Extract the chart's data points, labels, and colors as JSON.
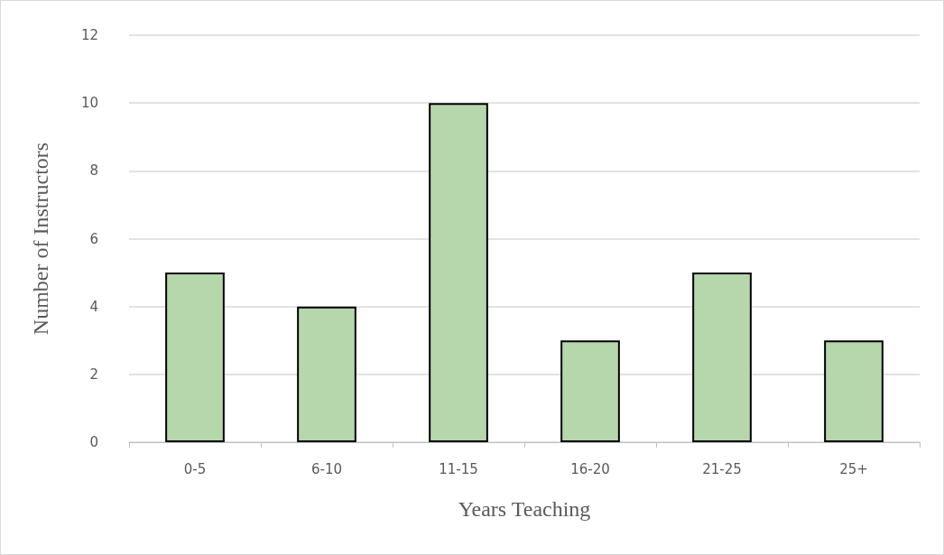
{
  "chart_data": {
    "type": "bar",
    "xlabel": "Years Teaching",
    "ylabel": "Number of Instructors",
    "categories": [
      "0-5",
      "6-10",
      "11-15",
      "16-20",
      "21-25",
      "25+"
    ],
    "values": [
      5,
      4,
      10,
      3,
      5,
      3
    ],
    "color": "#b5d7ab",
    "ylim": [
      0,
      12
    ],
    "yticks": [
      0,
      2,
      4,
      6,
      8,
      10,
      12
    ],
    "grid": "y"
  }
}
